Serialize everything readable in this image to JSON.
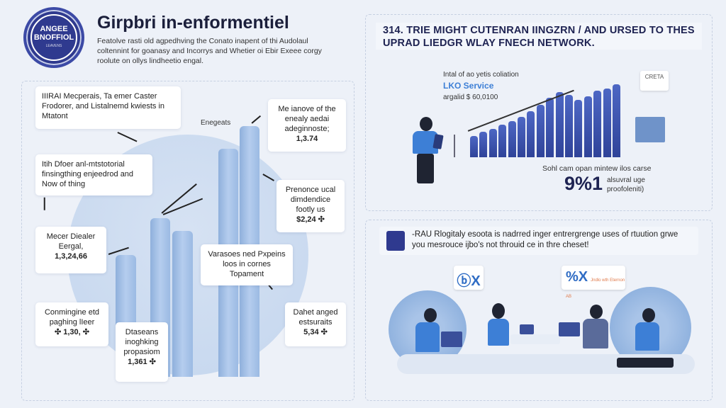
{
  "header": {
    "badge": {
      "line1": "ANGEE",
      "line2": "BNOFFIOL",
      "line3": "LEAVENS"
    },
    "title": "Girpbri in-enformentiel",
    "intro": "Featolve rasti old agpedhving the Conato inapent of thi Audolaul coltennint for goanasy and Incorrys and Whetier oi Ebir Exeee corgy roolute on ollys lindheetio engal."
  },
  "left_panel": {
    "chart_label": "Enegeats",
    "callouts": [
      {
        "text": "IIIRAI Mecperais, Ta emer Caster Frodorer, and Listalnemd kwiests in Mtatont"
      },
      {
        "text": "Me ianove of the enealy aedai adeginnoste;",
        "value": "1,3.74"
      },
      {
        "text": "Itih Dfoer anl-mtstotorial finsingthing enjeedrod and Now of thing"
      },
      {
        "text": "Prenonce ucal dimdendice footly us",
        "value": "$2,24 ✣"
      },
      {
        "text": "Mecer Diealer Eergal,",
        "value": "1,3,24,66"
      },
      {
        "text": "Varasoes ned Pxpeins loos in cornes Topament"
      },
      {
        "text": "Conmingine etd paghing lIeer",
        "value": "✣ 1,30, ✣"
      },
      {
        "text": "Dtaseans inoghking propasiom",
        "value": "1,361 ✣"
      },
      {
        "text": "Dahet anged estsuraits",
        "value": "5,34 ✣"
      }
    ]
  },
  "right_top": {
    "headline": "314. TRIE MIGHT CUTENRAN IINGZRN / AND URSED TO THES UPRAD LIEDGR WLAY FNECH NETWORK.",
    "chart_caption": "Intal of ao yetis coliation",
    "service": "LKO Service",
    "amount": "argalid $ 60,0100",
    "sign_text": "CRETA",
    "footer_text": "Sohl cam opan mintew ilos carse",
    "big_stat": "9%1",
    "stat_note": "alsuvral uge proofoleniti)"
  },
  "right_bottom": {
    "banner": "-RAU Rlogitaly esoota is nadrred inger entrergrenge uses of rtuution grwe you mesrouce ijbo's not throuid ce in thre cheset!",
    "bubble_left": "ⓑX",
    "bubble_right": "%X",
    "bubble_right_note": "Jndlo wth Eternon AB"
  },
  "colors": {
    "background": "#edf1f8",
    "navy": "#2f3a8f",
    "bar_light": "#a9c4e8",
    "bar_dark": "#2f4399",
    "accent": "#3d7fd6"
  }
}
